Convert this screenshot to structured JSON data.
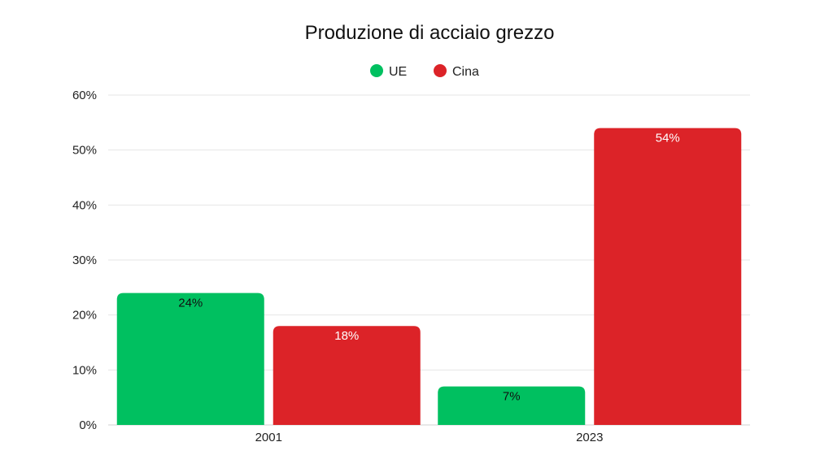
{
  "chart_data": {
    "type": "bar",
    "title": "Produzione di acciaio grezzo",
    "xlabel": "",
    "ylabel": "",
    "categories": [
      "2001",
      "2023"
    ],
    "series": [
      {
        "name": "UE",
        "color": "#00c060",
        "label_color": "#111111",
        "values": [
          24,
          7
        ],
        "labels": [
          "24%",
          "7%"
        ]
      },
      {
        "name": "Cina",
        "color": "#dc2328",
        "label_color": "#ffffff",
        "values": [
          18,
          54
        ],
        "labels": [
          "18%",
          "54%"
        ]
      }
    ],
    "ylim": [
      0,
      60
    ],
    "yticks": [
      0,
      10,
      20,
      30,
      40,
      50,
      60
    ],
    "ytick_labels": [
      "0%",
      "10%",
      "20%",
      "30%",
      "40%",
      "50%",
      "60%"
    ],
    "grid": true,
    "legend_position": "top-center"
  }
}
